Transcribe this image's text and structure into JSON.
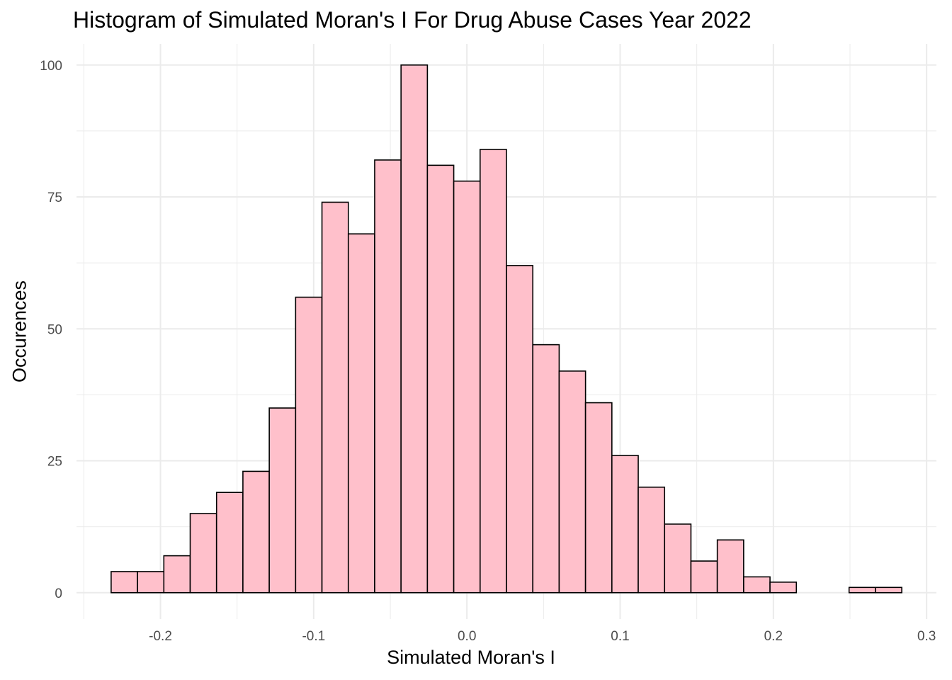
{
  "chart_data": {
    "type": "bar",
    "title": "Histogram of Simulated Moran's I For Drug Abuse Cases Year 2022",
    "xlabel": "Simulated Moran's I",
    "ylabel": "Occurences",
    "bin_width": 0.0172,
    "bins": [
      {
        "x0": -0.2322,
        "x1": -0.215,
        "count": 4
      },
      {
        "x0": -0.215,
        "x1": -0.1978,
        "count": 4
      },
      {
        "x0": -0.1978,
        "x1": -0.1806,
        "count": 7
      },
      {
        "x0": -0.1806,
        "x1": -0.1634,
        "count": 15
      },
      {
        "x0": -0.1634,
        "x1": -0.1462,
        "count": 19
      },
      {
        "x0": -0.1462,
        "x1": -0.129,
        "count": 23
      },
      {
        "x0": -0.129,
        "x1": -0.1118,
        "count": 35
      },
      {
        "x0": -0.1118,
        "x1": -0.0946,
        "count": 56
      },
      {
        "x0": -0.0946,
        "x1": -0.0774,
        "count": 74
      },
      {
        "x0": -0.0774,
        "x1": -0.0602,
        "count": 68
      },
      {
        "x0": -0.0602,
        "x1": -0.043,
        "count": 82
      },
      {
        "x0": -0.043,
        "x1": -0.0258,
        "count": 100
      },
      {
        "x0": -0.0258,
        "x1": -0.0086,
        "count": 81
      },
      {
        "x0": -0.0086,
        "x1": 0.0086,
        "count": 78
      },
      {
        "x0": 0.0086,
        "x1": 0.0258,
        "count": 84
      },
      {
        "x0": 0.0258,
        "x1": 0.043,
        "count": 62
      },
      {
        "x0": 0.043,
        "x1": 0.0602,
        "count": 47
      },
      {
        "x0": 0.0602,
        "x1": 0.0774,
        "count": 42
      },
      {
        "x0": 0.0774,
        "x1": 0.0946,
        "count": 36
      },
      {
        "x0": 0.0946,
        "x1": 0.1118,
        "count": 26
      },
      {
        "x0": 0.1118,
        "x1": 0.129,
        "count": 20
      },
      {
        "x0": 0.129,
        "x1": 0.1462,
        "count": 13
      },
      {
        "x0": 0.1462,
        "x1": 0.1634,
        "count": 6
      },
      {
        "x0": 0.1634,
        "x1": 0.1806,
        "count": 10
      },
      {
        "x0": 0.1806,
        "x1": 0.1978,
        "count": 3
      },
      {
        "x0": 0.1978,
        "x1": 0.215,
        "count": 2
      },
      {
        "x0": 0.215,
        "x1": 0.2322,
        "count": 0
      },
      {
        "x0": 0.2322,
        "x1": 0.2494,
        "count": 0
      },
      {
        "x0": 0.2494,
        "x1": 0.2666,
        "count": 1
      },
      {
        "x0": 0.2666,
        "x1": 0.2838,
        "count": 1
      }
    ],
    "xlim": [
      -0.2548,
      0.3064
    ],
    "ylim": [
      -5,
      104
    ],
    "x_ticks": [
      -0.2,
      -0.1,
      0.0,
      0.1,
      0.2,
      0.3
    ],
    "x_tick_labels": [
      "-0.2",
      "-0.1",
      "0.0",
      "0.1",
      "0.2",
      "0.3"
    ],
    "y_ticks": [
      0,
      25,
      50,
      75,
      100
    ],
    "y_tick_labels": [
      "0",
      "25",
      "50",
      "75",
      "100"
    ],
    "grid": true,
    "colors": {
      "bar_fill": "#FFC0CB",
      "bar_stroke": "#000000",
      "grid": "#ebebeb",
      "tick_text": "#4d4d4d"
    }
  }
}
